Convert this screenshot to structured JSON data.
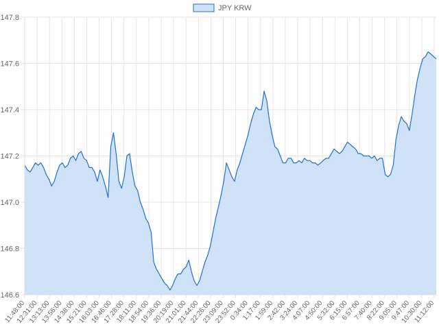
{
  "chart_data": {
    "type": "area",
    "legend": {
      "placement": "top-center",
      "label": "JPY KRW"
    },
    "colors": {
      "line": "#1f6fd1",
      "fill": "#cfe2f7",
      "grid": "#e6e6e6"
    },
    "grid": true,
    "ylim": [
      146.6,
      147.8
    ],
    "yticks": [
      "147.8",
      "147.6",
      "147.4",
      "147.2",
      "147.0",
      "146.8",
      "146.6"
    ],
    "x_ticks": [
      "11:48:00",
      "12:31:00",
      "13:13:00",
      "13:56:00",
      "14:38:00",
      "15:21:00",
      "16:03:00",
      "16:46:00",
      "17:28:00",
      "18:11:00",
      "18:54:00",
      "19:36:00",
      "20:19:00",
      "21:01:00",
      "21:44:00",
      "22:26:00",
      "23:09:00",
      "23:52:00",
      "0:34:00",
      "1:17:00",
      "1:59:00",
      "2:42:00",
      "3:24:00",
      "4:07:00",
      "4:50:00",
      "5:32:00",
      "6:15:00",
      "6:57:00",
      "7:40:00",
      "8:22:00",
      "9:05:00",
      "9:47:00",
      "10:30:00",
      "11:12:00"
    ],
    "series": [
      {
        "name": "JPY KRW",
        "values": [
          147.16,
          147.14,
          147.13,
          147.15,
          147.17,
          147.16,
          147.17,
          147.15,
          147.12,
          147.1,
          147.07,
          147.09,
          147.13,
          147.16,
          147.17,
          147.15,
          147.16,
          147.19,
          147.2,
          147.18,
          147.21,
          147.22,
          147.19,
          147.18,
          147.15,
          147.15,
          147.13,
          147.09,
          147.14,
          147.11,
          147.07,
          147.02,
          147.24,
          147.3,
          147.21,
          147.09,
          147.06,
          147.11,
          147.2,
          147.21,
          147.13,
          147.07,
          147.05,
          147.0,
          146.97,
          146.93,
          146.91,
          146.87,
          146.74,
          146.71,
          146.69,
          146.67,
          146.65,
          146.64,
          146.62,
          146.64,
          146.67,
          146.69,
          146.69,
          146.71,
          146.72,
          146.75,
          146.7,
          146.66,
          146.64,
          146.66,
          146.7,
          146.74,
          146.77,
          146.81,
          146.87,
          146.93,
          146.98,
          147.03,
          147.09,
          147.17,
          147.14,
          147.11,
          147.09,
          147.14,
          147.17,
          147.21,
          147.25,
          147.29,
          147.34,
          147.38,
          147.41,
          147.4,
          147.4,
          147.48,
          147.44,
          147.35,
          147.29,
          147.24,
          147.23,
          147.2,
          147.17,
          147.17,
          147.19,
          147.19,
          147.17,
          147.17,
          147.18,
          147.17,
          147.19,
          147.18,
          147.18,
          147.17,
          147.17,
          147.16,
          147.17,
          147.18,
          147.19,
          147.19,
          147.21,
          147.23,
          147.22,
          147.21,
          147.22,
          147.24,
          147.26,
          147.25,
          147.24,
          147.23,
          147.21,
          147.21,
          147.2,
          147.2,
          147.2,
          147.19,
          147.2,
          147.18,
          147.19,
          147.19,
          147.12,
          147.11,
          147.12,
          147.16,
          147.27,
          147.33,
          147.37,
          147.35,
          147.34,
          147.31,
          147.38,
          147.46,
          147.53,
          147.58,
          147.62,
          147.63,
          147.65,
          147.64,
          147.63,
          147.62
        ]
      }
    ]
  }
}
